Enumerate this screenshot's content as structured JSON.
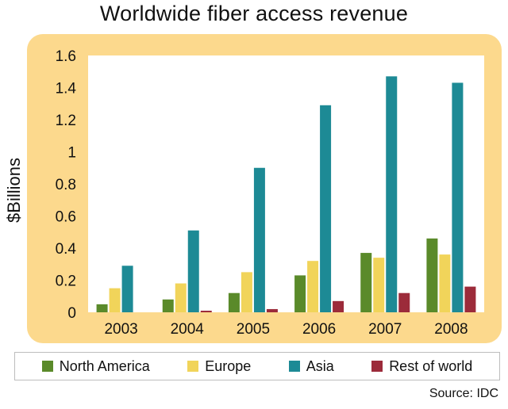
{
  "chart_data": {
    "type": "bar",
    "title": "Worldwide fiber access revenue",
    "ylabel": "$Billions",
    "xlabel": "",
    "categories": [
      "2003",
      "2004",
      "2005",
      "2006",
      "2007",
      "2008"
    ],
    "ylim": [
      0,
      1.6
    ],
    "yticks": [
      "0",
      "0.2",
      "0.4",
      "0.6",
      "0.8",
      "1",
      "1.2",
      "1.4",
      "1.6"
    ],
    "series": [
      {
        "name": "North America",
        "color": "#5a8a2a",
        "values": [
          0.05,
          0.08,
          0.12,
          0.23,
          0.37,
          0.46
        ]
      },
      {
        "name": "Europe",
        "color": "#f1d45a",
        "values": [
          0.15,
          0.18,
          0.25,
          0.32,
          0.34,
          0.36
        ]
      },
      {
        "name": "Asia",
        "color": "#1d8a95",
        "values": [
          0.29,
          0.51,
          0.9,
          1.29,
          1.47,
          1.43
        ]
      },
      {
        "name": "Rest of world",
        "color": "#9c2b3a",
        "values": [
          0.0,
          0.01,
          0.02,
          0.07,
          0.12,
          0.16
        ]
      }
    ],
    "grid": false,
    "legend_position": "bottom"
  },
  "source": "Source: IDC"
}
